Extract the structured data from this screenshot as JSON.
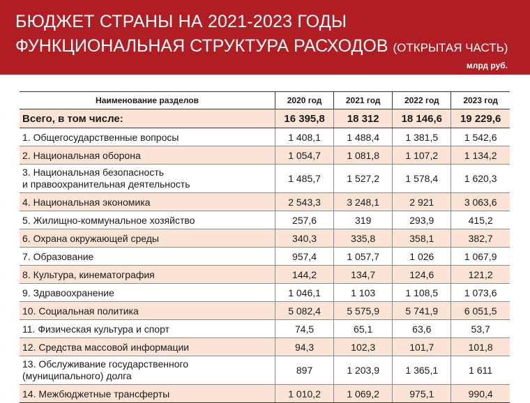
{
  "header": {
    "title_line1": "БЮДЖЕТ СТРАНЫ НА 2021-2023 ГОДЫ",
    "title_line2": "ФУНКЦИОНАЛЬНАЯ СТРУКТУРА РАСХОДОВ",
    "title_note": "(ОТКРЫТАЯ ЧАСТЬ)",
    "unit": "млрд руб.",
    "accent_color": "#b01e24",
    "stripe_color": "#fbe4d5"
  },
  "table": {
    "columns": [
      "Наименование разделов",
      "2020 год",
      "2021 год",
      "2022 год",
      "2023 год"
    ],
    "total": {
      "name": "Всего, в том числе:",
      "values": [
        "16 395,8",
        "18 312",
        "18 146,6",
        "19 229,6"
      ]
    },
    "rows": [
      {
        "name": "1. Общегосударственные вопросы",
        "values": [
          "1 408,1",
          "1 488,4",
          "1 381,5",
          "1 542,6"
        ]
      },
      {
        "name": "2. Национальная оборона",
        "values": [
          "1 054,7",
          "1 081,8",
          "1 107,2",
          "1 134,2"
        ]
      },
      {
        "name": "3. Национальная безопасность",
        "name2": "и правоохранительная деятельность",
        "values": [
          "1 485,7",
          "1 527,2",
          "1 578,4",
          "1 620,3"
        ]
      },
      {
        "name": "4. Национальная экономика",
        "values": [
          "2 543,3",
          "3 248,1",
          "2 921",
          "3 063,6"
        ]
      },
      {
        "name": "5. Жилищно-коммунальное хозяйство",
        "values": [
          "257,6",
          "319",
          "293,9",
          "415,2"
        ]
      },
      {
        "name": "6. Охрана окружающей среды",
        "values": [
          "340,3",
          "335,8",
          "358,1",
          "382,7"
        ]
      },
      {
        "name": "7. Образование",
        "values": [
          "957,4",
          "1 057,7",
          "1 026",
          "1 067,9"
        ]
      },
      {
        "name": "8. Культура, кинематография",
        "values": [
          "144,2",
          "134,7",
          "124,6",
          "121,2"
        ]
      },
      {
        "name": "9. Здравоохранение",
        "values": [
          "1 046,1",
          "1 103",
          "1 108,5",
          "1 073,6"
        ]
      },
      {
        "name": "10. Социальная политика",
        "values": [
          "5 082,4",
          "5 575,9",
          "5 741,9",
          "6 051,5"
        ]
      },
      {
        "name": "11. Физическая культура и спорт",
        "values": [
          "74,5",
          "65,1",
          "63,6",
          "53,7"
        ]
      },
      {
        "name": "12. Средства массовой информации",
        "values": [
          "94,3",
          "102,3",
          "101,7",
          "101,8"
        ]
      },
      {
        "name": "13. Обслуживание государственного",
        "name2": "(муниципального) долга",
        "values": [
          "897",
          "1 203,9",
          "1 365,1",
          "1 611"
        ]
      },
      {
        "name": "14. Межбюджетные трансферты",
        "values": [
          "1 010,2",
          "1 069,2",
          "975,1",
          "990,4"
        ]
      }
    ]
  }
}
